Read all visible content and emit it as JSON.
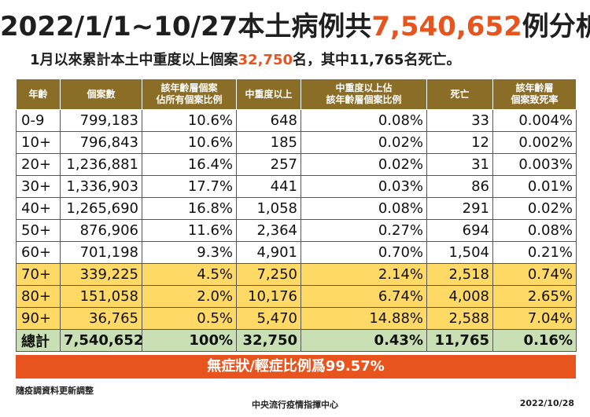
{
  "title": {
    "prefix": "2022/1/1~10/27本土病例共",
    "highlight": "7,540,652",
    "suffix": "例分析"
  },
  "subtitle": {
    "prefix": "1月以來累計本土中重度以上個案",
    "highlight": "32,750",
    "suffix": "名，其中11,765名死亡。"
  },
  "table": {
    "headers": [
      "年齡",
      "個案數",
      "該年齡層個案\n佔所有個案比例",
      "中重度以上",
      "中重度以上佔\n該年齡層個案比例",
      "死亡",
      "該年齡層\n個案致死率"
    ],
    "rows": [
      [
        "0-9",
        "799,183",
        "10.6%",
        "648",
        "0.08%",
        "33",
        "0.004%"
      ],
      [
        "10+",
        "796,843",
        "10.6%",
        "185",
        "0.02%",
        "12",
        "0.002%"
      ],
      [
        "20+",
        "1,236,881",
        "16.4%",
        "257",
        "0.02%",
        "31",
        "0.003%"
      ],
      [
        "30+",
        "1,336,903",
        "17.7%",
        "441",
        "0.03%",
        "86",
        "0.01%"
      ],
      [
        "40+",
        "1,265,690",
        "16.8%",
        "1,058",
        "0.08%",
        "291",
        "0.02%"
      ],
      [
        "50+",
        "876,906",
        "11.6%",
        "2,364",
        "0.27%",
        "694",
        "0.08%"
      ],
      [
        "60+",
        "701,198",
        "9.3%",
        "4,901",
        "0.70%",
        "1,504",
        "0.21%"
      ],
      [
        "70+",
        "339,225",
        "4.5%",
        "7,250",
        "2.14%",
        "2,518",
        "0.74%"
      ],
      [
        "80+",
        "151,058",
        "2.0%",
        "10,176",
        "6.74%",
        "4,008",
        "2.65%"
      ],
      [
        "90+",
        "36,765",
        "0.5%",
        "5,470",
        "14.88%",
        "2,588",
        "7.04%"
      ]
    ],
    "highlight_rows": [
      7,
      8,
      9
    ],
    "total": [
      "總計",
      "7,540,652",
      "100%",
      "32,750",
      "0.43%",
      "11,765",
      "0.16%"
    ]
  },
  "banner": "無症狀/輕症比例爲99.57%",
  "note": "隨疫調資料更新調整",
  "org": "中央流行疫情指揮中心",
  "date": "2022/10/28",
  "colors": {
    "header_bg": "#8a6d26",
    "highlight_text": "#e8541e",
    "row_highlight": "#ffd966",
    "total_row": "#c8e0b4",
    "banner_bg": "#e8541e"
  }
}
